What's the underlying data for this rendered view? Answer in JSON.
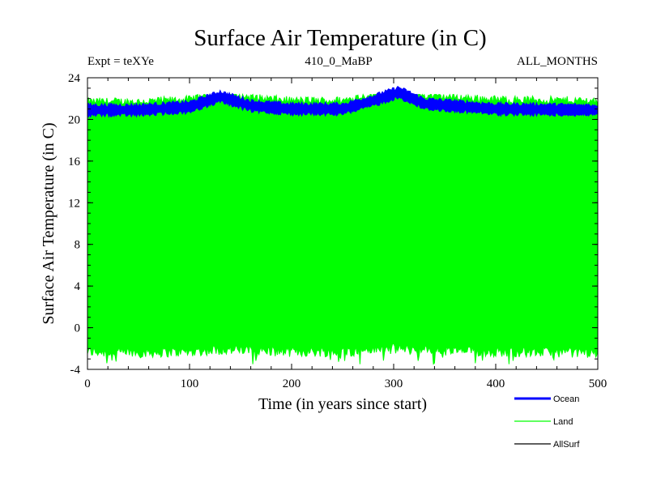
{
  "chart_data": {
    "type": "line",
    "title": "Surface Air Temperature (in C)",
    "subtitle_left": "Expt = teXYe",
    "subtitle_center": "410_0_MaBP",
    "subtitle_right": "ALL_MONTHS",
    "xlabel": "Time (in years since start)",
    "ylabel": "Surface Air Temperature (in C)",
    "xlim": [
      0,
      500
    ],
    "ylim": [
      -4,
      24
    ],
    "x_ticks": [
      0,
      100,
      200,
      300,
      400,
      500
    ],
    "y_ticks": [
      -4,
      0,
      4,
      8,
      12,
      16,
      20,
      24
    ],
    "grid": false,
    "legend_position": "bottom-right, outside plot",
    "series": [
      {
        "name": "Ocean",
        "color": "#0000ff",
        "band_x": [
          0,
          50,
          100,
          130,
          160,
          200,
          250,
          280,
          305,
          330,
          400,
          500
        ],
        "band_center": [
          20.9,
          20.9,
          21.2,
          22.2,
          21.3,
          21.0,
          21.0,
          21.8,
          22.6,
          21.5,
          21.0,
          20.9
        ],
        "band_halfwidth": 0.45
      },
      {
        "name": "Land",
        "color": "#00ff00",
        "band_x": [
          0,
          50,
          100,
          130,
          160,
          200,
          250,
          280,
          305,
          330,
          400,
          500
        ],
        "band_max": [
          21.7,
          21.7,
          21.9,
          22.8,
          22.1,
          21.8,
          21.8,
          22.5,
          23.0,
          22.3,
          21.9,
          21.8
        ],
        "band_min": [
          -2.3,
          -2.4,
          -2.3,
          -2.1,
          -2.2,
          -2.3,
          -2.3,
          -2.1,
          -2.0,
          -2.2,
          -2.3,
          -2.4
        ],
        "extreme_max": 22.4,
        "extreme_min": -3.5
      },
      {
        "name": "AllSurf",
        "color": "#000000"
      }
    ]
  }
}
